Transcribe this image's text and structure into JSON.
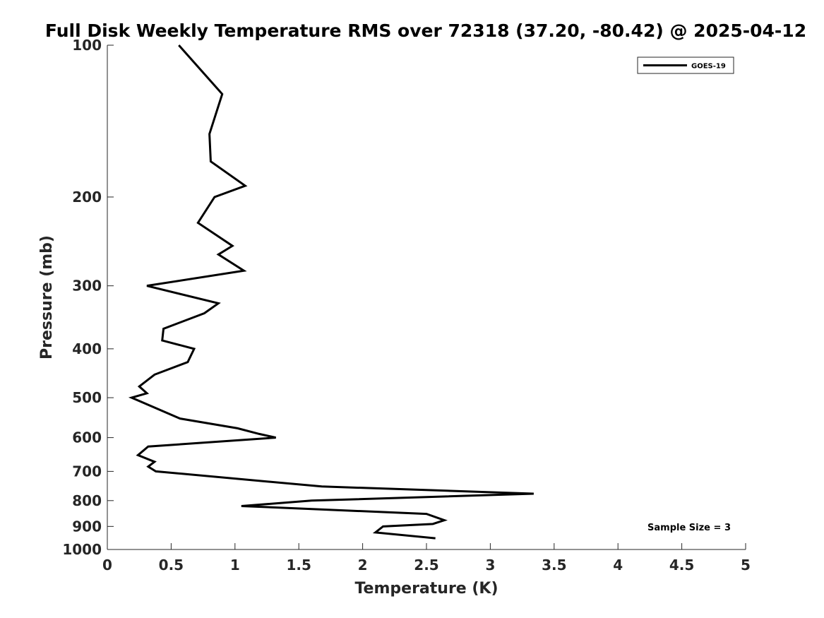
{
  "chart_data": {
    "type": "line",
    "title": "Full Disk Weekly Temperature RMS over 72318 (37.20, -80.42) @ 2025-04-12",
    "xlabel": "Temperature (K)",
    "ylabel": "Pressure (mb)",
    "xlim": [
      0,
      5
    ],
    "ylim": [
      100,
      1000
    ],
    "yscale": "log",
    "y_reversed": true,
    "grid": false,
    "legend_position": "top-right",
    "xticks": [
      "0",
      "0.5",
      "1",
      "1.5",
      "2",
      "2.5",
      "3",
      "3.5",
      "4",
      "4.5",
      "5"
    ],
    "yticks": [
      "100",
      "200",
      "300",
      "400",
      "500",
      "600",
      "700",
      "800",
      "900",
      "1000"
    ],
    "annotation": "Sample Size = 3",
    "series": [
      {
        "name": "GOES-19",
        "color": "#000000",
        "points": [
          [
            0.56,
            100
          ],
          [
            0.9,
            125
          ],
          [
            0.8,
            150
          ],
          [
            0.81,
            170
          ],
          [
            1.08,
            190
          ],
          [
            0.84,
            200
          ],
          [
            0.71,
            225
          ],
          [
            0.98,
            250
          ],
          [
            0.87,
            260
          ],
          [
            1.07,
            280
          ],
          [
            0.31,
            300
          ],
          [
            0.87,
            325
          ],
          [
            0.76,
            340
          ],
          [
            0.44,
            365
          ],
          [
            0.43,
            385
          ],
          [
            0.68,
            400
          ],
          [
            0.63,
            425
          ],
          [
            0.37,
            450
          ],
          [
            0.25,
            475
          ],
          [
            0.31,
            490
          ],
          [
            0.19,
            500
          ],
          [
            0.57,
            550
          ],
          [
            1.02,
            575
          ],
          [
            1.19,
            590
          ],
          [
            1.32,
            600
          ],
          [
            0.32,
            625
          ],
          [
            0.24,
            650
          ],
          [
            0.37,
            670
          ],
          [
            0.32,
            685
          ],
          [
            0.38,
            700
          ],
          [
            1.68,
            750
          ],
          [
            3.34,
            775
          ],
          [
            1.6,
            800
          ],
          [
            1.05,
            820
          ],
          [
            2.5,
            850
          ],
          [
            2.64,
            875
          ],
          [
            2.55,
            890
          ],
          [
            2.16,
            900
          ],
          [
            2.1,
            925
          ],
          [
            2.57,
            950
          ]
        ]
      }
    ]
  }
}
